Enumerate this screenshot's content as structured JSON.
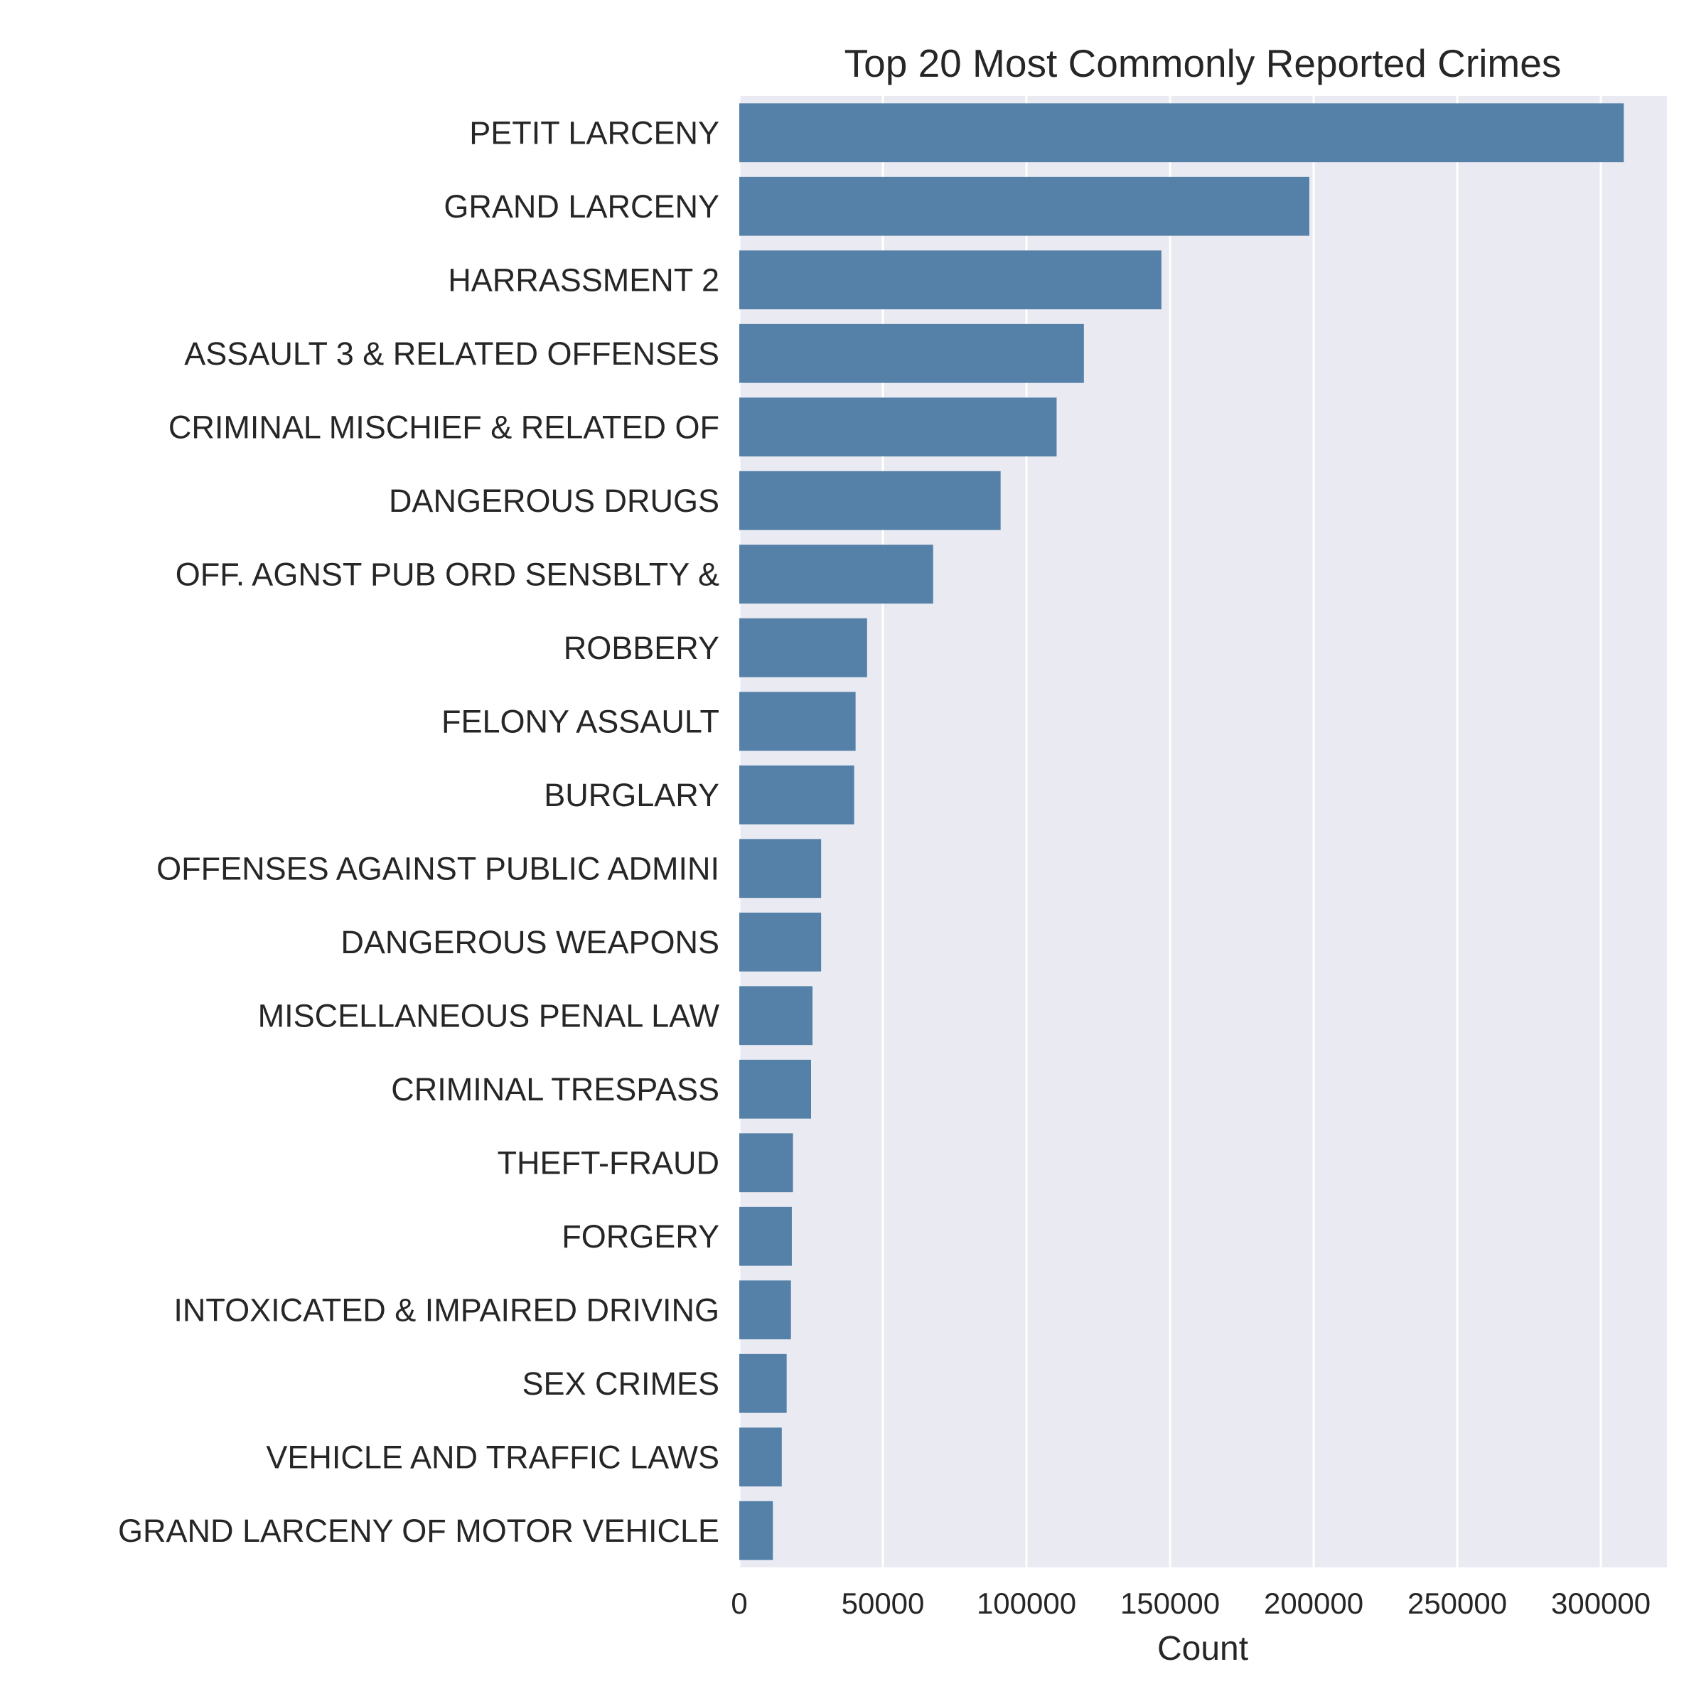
{
  "chart_data": {
    "type": "bar",
    "orientation": "horizontal",
    "title": "Top 20 Most Commonly Reported Crimes",
    "xlabel": "Count",
    "ylabel": "",
    "xlim": [
      0,
      323000
    ],
    "xticks": [
      0,
      50000,
      100000,
      150000,
      200000,
      250000,
      300000
    ],
    "grid": true,
    "colors": {
      "bar": "#5581a8",
      "background": "#eaeaf2",
      "grid": "#ffffff",
      "text": "#262626"
    },
    "categories": [
      "PETIT LARCENY",
      "GRAND LARCENY",
      "HARRASSMENT 2",
      "ASSAULT 3 & RELATED OFFENSES",
      "CRIMINAL MISCHIEF & RELATED OF",
      "DANGEROUS DRUGS",
      "OFF. AGNST PUB ORD SENSBLTY &",
      "ROBBERY",
      "FELONY ASSAULT",
      "BURGLARY",
      "OFFENSES AGAINST PUBLIC ADMINI",
      "DANGEROUS WEAPONS",
      "MISCELLANEOUS PENAL LAW",
      "CRIMINAL TRESPASS",
      "THEFT-FRAUD",
      "FORGERY",
      "INTOXICATED & IMPAIRED DRIVING",
      "SEX CRIMES",
      "VEHICLE AND TRAFFIC LAWS",
      "GRAND LARCENY OF MOTOR VEHICLE"
    ],
    "values": [
      308000,
      198500,
      147000,
      120000,
      110500,
      91000,
      67500,
      44500,
      40500,
      40000,
      28500,
      28500,
      25500,
      25000,
      18700,
      18300,
      18000,
      16500,
      14800,
      11700
    ]
  }
}
